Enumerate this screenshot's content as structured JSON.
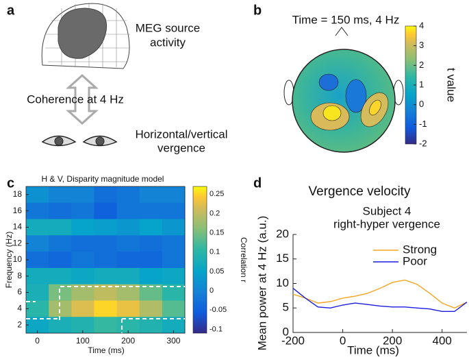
{
  "panels": {
    "a": {
      "label": "a",
      "source_text": [
        "MEG source",
        "activity"
      ],
      "link_text": "Coherence at 4 Hz",
      "eye_text": [
        "Horizontal/vertical",
        "vergence"
      ]
    },
    "b": {
      "label": "b",
      "title": "Time = 150 ms, 4 Hz",
      "colorbar": {
        "label": "t value",
        "lim": [
          -2,
          4
        ],
        "ticks": [
          -2,
          -1,
          0,
          1,
          2,
          3,
          4
        ],
        "colormap": "parula"
      }
    }
  },
  "chart_data": [
    {
      "type": "heatmap",
      "panel_label": "c",
      "title": "H & V, Disparity magnitude model",
      "xlabel": "Time (ms)",
      "ylabel": "Frequency (Hz)",
      "x": [
        0,
        50,
        100,
        150,
        200,
        250,
        300
      ],
      "y": [
        18,
        16,
        14,
        12,
        10,
        8,
        6,
        4,
        2
      ],
      "values": [
        [
          0.02,
          0.0,
          0.0,
          -0.03,
          -0.02,
          0.0,
          0.0
        ],
        [
          -0.02,
          -0.03,
          -0.02,
          -0.05,
          -0.02,
          -0.02,
          -0.02
        ],
        [
          0.07,
          0.07,
          0.05,
          0.04,
          0.03,
          0.05,
          0.03
        ],
        [
          0.0,
          -0.02,
          -0.03,
          -0.03,
          -0.02,
          -0.03,
          -0.02
        ],
        [
          -0.03,
          -0.04,
          -0.02,
          -0.03,
          -0.04,
          -0.04,
          -0.02
        ],
        [
          0.07,
          0.07,
          0.06,
          0.07,
          0.07,
          0.05,
          0.06
        ],
        [
          0.08,
          0.15,
          0.18,
          0.2,
          0.18,
          0.14,
          0.1
        ],
        [
          0.1,
          0.18,
          0.22,
          0.25,
          0.23,
          0.19,
          0.13
        ],
        [
          0.06,
          0.08,
          0.09,
          0.11,
          0.1,
          0.09,
          0.07
        ]
      ],
      "xlim": [
        -25,
        325
      ],
      "ylim": [
        1,
        19
      ],
      "xticks": [
        0,
        100,
        200,
        300
      ],
      "yticks": [
        2,
        4,
        6,
        8,
        10,
        12,
        14,
        16,
        18
      ],
      "colormap": "parula",
      "colorbar": {
        "label": "Correlation r",
        "lim": [
          -0.11,
          0.27
        ],
        "ticks": [
          -0.1,
          -0.05,
          0,
          0.05,
          0.1,
          0.15,
          0.2,
          0.25
        ]
      }
    },
    {
      "type": "line",
      "panel_label": "d",
      "title": "Vergence velocity",
      "subtitle": [
        "Subject 4",
        "right-hyper vergence"
      ],
      "xlabel": "Time (ms)",
      "ylabel": "Mean power at 4 Hz (a.u.)",
      "x": [
        -200,
        -150,
        -100,
        -50,
        0,
        50,
        100,
        150,
        200,
        250,
        300,
        350,
        400,
        450,
        500
      ],
      "series": [
        {
          "name": "Strong",
          "color": "#f5a623",
          "values": [
            7.8,
            7,
            6,
            6.3,
            7,
            7.4,
            8,
            9,
            10.2,
            10.7,
            9.8,
            8,
            6,
            5,
            6.2
          ]
        },
        {
          "name": "Poor",
          "color": "#1a1adf",
          "values": [
            9,
            7,
            5.2,
            5,
            5.6,
            6,
            5.7,
            5.4,
            5.2,
            5.2,
            5,
            4.8,
            4.3,
            4.3,
            6.2
          ]
        }
      ],
      "xlim": [
        -200,
        500
      ],
      "ylim": [
        0,
        20
      ],
      "xticks": [
        -200,
        0,
        200,
        400
      ],
      "yticks": [
        0,
        5,
        10,
        15,
        20
      ],
      "legend": "upper right"
    }
  ]
}
